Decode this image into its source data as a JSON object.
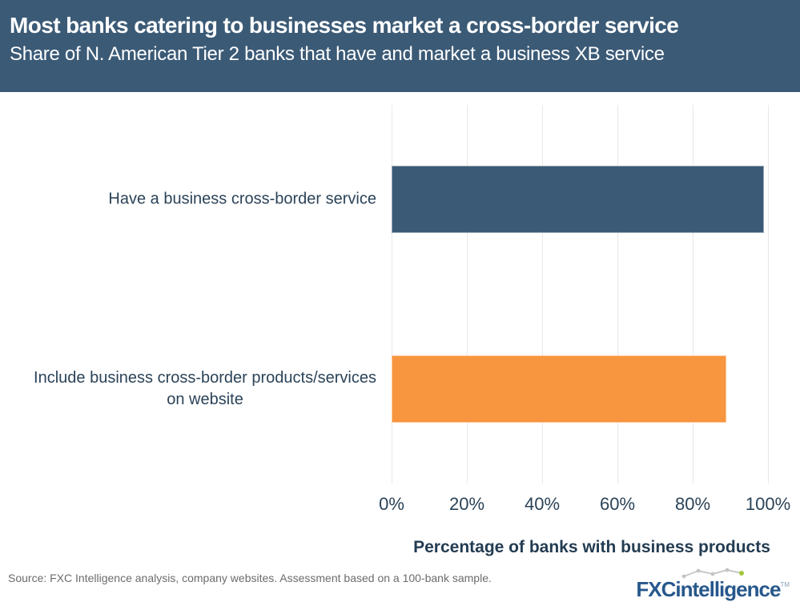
{
  "header": {
    "title": "Most banks catering to businesses market a cross-border service",
    "subtitle": "Share of N. American Tier 2 banks that have and market a business XB service",
    "bg_color": "#3b5a76",
    "text_color": "#ffffff"
  },
  "chart_data": {
    "type": "bar",
    "orientation": "horizontal",
    "categories": [
      "Have a business cross-border service",
      "Include business cross-border products/services\non website"
    ],
    "values": [
      99,
      89
    ],
    "bar_colors": [
      "#3b5a76",
      "#f8953f"
    ],
    "x_ticks": [
      "0%",
      "20%",
      "40%",
      "60%",
      "80%",
      "100%"
    ],
    "xlim": [
      0,
      100
    ],
    "xlabel": "Percentage of banks with business products",
    "grid": "vertical-only",
    "legend": "none"
  },
  "footer": {
    "source": "Source: FXC Intelligence analysis, company websites. Assessment based on a 100-bank sample."
  },
  "logo": {
    "bold": "FXC",
    "rest": "intelligence",
    "tm": "TM",
    "blue": "#27588c",
    "green": "#a5c73c"
  }
}
